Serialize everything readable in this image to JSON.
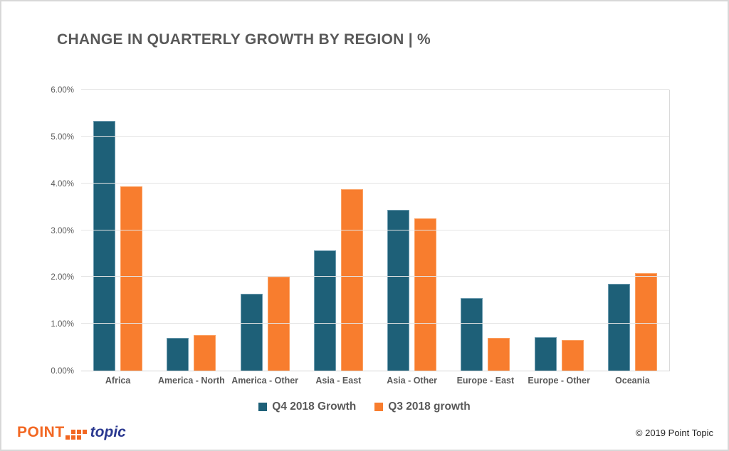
{
  "title": "CHANGE IN QUARTERLY GROWTH BY REGION | %",
  "chart_data": {
    "type": "bar",
    "title": "CHANGE IN QUARTERLY GROWTH BY REGION | %",
    "categories": [
      "Africa",
      "America - North",
      "America - Other",
      "Asia - East",
      "Asia - Other",
      "Europe - East",
      "Europe - Other",
      "Oceania"
    ],
    "series": [
      {
        "name": "Q4 2018 Growth",
        "color": "#1e6078",
        "values": [
          5.33,
          0.7,
          1.64,
          2.56,
          3.44,
          1.55,
          0.71,
          1.85
        ]
      },
      {
        "name": "Q3 2018 growth",
        "color": "#f87d2e",
        "values": [
          3.93,
          0.76,
          2.0,
          3.88,
          3.25,
          0.7,
          0.66,
          2.08
        ]
      }
    ],
    "xlabel": "",
    "ylabel": "",
    "ylim": [
      0,
      6
    ],
    "ytick_labels": [
      "0.00%",
      "1.00%",
      "2.00%",
      "3.00%",
      "4.00%",
      "5.00%",
      "6.00%"
    ],
    "grid": true,
    "legend_position": "bottom"
  },
  "footer": {
    "logo_point": "POINT",
    "logo_topic": "topic",
    "copyright": "© 2019 Point Topic"
  },
  "colors": {
    "q4_bar": "#1e6078",
    "q3_bar": "#f87d2e",
    "gridline": "#e4e4e4",
    "text": "#595959",
    "logo_orange": "#f26722",
    "logo_navy": "#2b3990"
  }
}
